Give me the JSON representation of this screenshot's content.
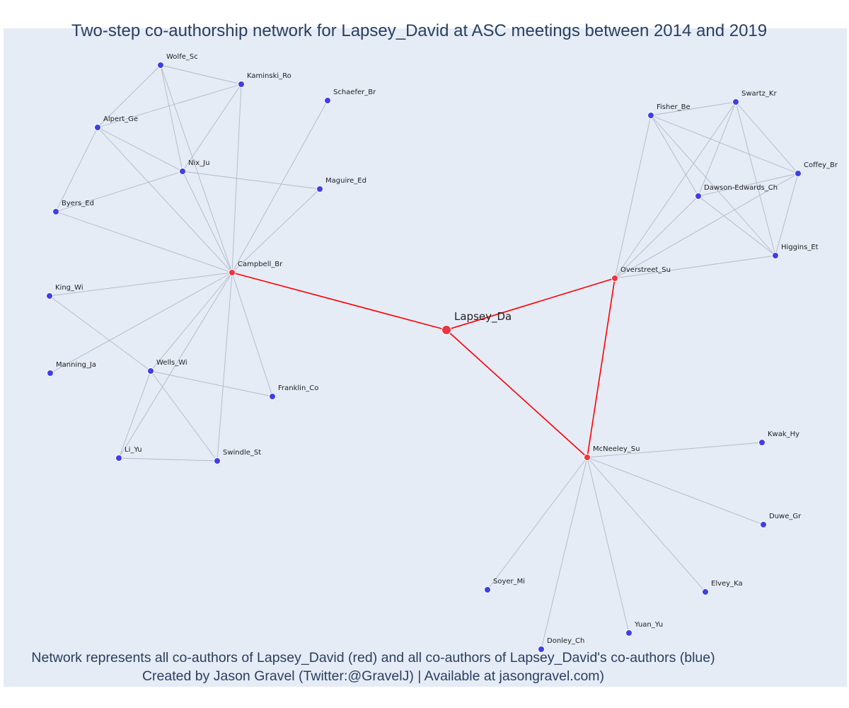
{
  "title": "Two-step co-authorship network for Lapsey_David at ASC meetings between 2014 and 2019",
  "footer": {
    "line1": "Network represents all co-authors of Lapsey_David (red) and all co-authors of Lapsey_David's co-authors (blue)",
    "line2": "Created by Jason Gravel (Twitter:@GravelJ) | Available at jasongravel.com)"
  },
  "colors": {
    "background": "#e5ecf6",
    "red_node": "#ef3340",
    "blue_node": "#3f3fe8",
    "red_edge": "#ff0000",
    "gray_edge": "#b3b7c6"
  },
  "nodes": [
    {
      "id": "Lapsey_Da",
      "label": "Lapsey_Da",
      "group": "center"
    },
    {
      "id": "Campbell_Br",
      "label": "Campbell_Br",
      "group": "red"
    },
    {
      "id": "Overstreet_Su",
      "label": "Overstreet_Su",
      "group": "red"
    },
    {
      "id": "McNeeley_Su",
      "label": "McNeeley_Su",
      "group": "red"
    },
    {
      "id": "Wolfe_Sc",
      "label": "Wolfe_Sc",
      "group": "blue"
    },
    {
      "id": "Kaminski_Ro",
      "label": "Kaminski_Ro",
      "group": "blue"
    },
    {
      "id": "Schaefer_Br",
      "label": "Schaefer_Br",
      "group": "blue"
    },
    {
      "id": "Alpert_Ge",
      "label": "Alpert_Ge",
      "group": "blue"
    },
    {
      "id": "Nix_Ju",
      "label": "Nix_Ju",
      "group": "blue"
    },
    {
      "id": "Maguire_Ed",
      "label": "Maguire_Ed",
      "group": "blue"
    },
    {
      "id": "Byers_Ed",
      "label": "Byers_Ed",
      "group": "blue"
    },
    {
      "id": "King_Wi",
      "label": "King_Wi",
      "group": "blue"
    },
    {
      "id": "Manning_Ja",
      "label": "Manning_Ja",
      "group": "blue"
    },
    {
      "id": "Wells_Wi",
      "label": "Wells_Wi",
      "group": "blue"
    },
    {
      "id": "Franklin_Co",
      "label": "Franklin_Co",
      "group": "blue"
    },
    {
      "id": "Li_Yu",
      "label": "Li_Yu",
      "group": "blue"
    },
    {
      "id": "Swindle_St",
      "label": "Swindle_St",
      "group": "blue"
    },
    {
      "id": "Fisher_Be",
      "label": "Fisher_Be",
      "group": "blue"
    },
    {
      "id": "Swartz_Kr",
      "label": "Swartz_Kr",
      "group": "blue"
    },
    {
      "id": "Coffey_Br",
      "label": "Coffey_Br",
      "group": "blue"
    },
    {
      "id": "Dawson-Edwards_Ch",
      "label": "Dawson-Edwards_Ch",
      "group": "blue"
    },
    {
      "id": "Higgins_Et",
      "label": "Higgins_Et",
      "group": "blue"
    },
    {
      "id": "Kwak_Hy",
      "label": "Kwak_Hy",
      "group": "blue"
    },
    {
      "id": "Duwe_Gr",
      "label": "Duwe_Gr",
      "group": "blue"
    },
    {
      "id": "Soyer_Mi",
      "label": "Soyer_Mi",
      "group": "blue"
    },
    {
      "id": "Elvey_Ka",
      "label": "Elvey_Ka",
      "group": "blue"
    },
    {
      "id": "Yuan_Yu",
      "label": "Yuan_Yu",
      "group": "blue"
    },
    {
      "id": "Donley_Ch",
      "label": "Donley_Ch",
      "group": "blue"
    }
  ],
  "edges": [
    [
      "Lapsey_Da",
      "Campbell_Br"
    ],
    [
      "Lapsey_Da",
      "Overstreet_Su"
    ],
    [
      "Lapsey_Da",
      "McNeeley_Su"
    ],
    [
      "Overstreet_Su",
      "McNeeley_Su"
    ],
    [
      "Wolfe_Sc",
      "Kaminski_Ro"
    ],
    [
      "Wolfe_Sc",
      "Alpert_Ge"
    ],
    [
      "Wolfe_Sc",
      "Nix_Ju"
    ],
    [
      "Wolfe_Sc",
      "Campbell_Br"
    ],
    [
      "Kaminski_Ro",
      "Alpert_Ge"
    ],
    [
      "Kaminski_Ro",
      "Nix_Ju"
    ],
    [
      "Kaminski_Ro",
      "Campbell_Br"
    ],
    [
      "Alpert_Ge",
      "Nix_Ju"
    ],
    [
      "Alpert_Ge",
      "Byers_Ed"
    ],
    [
      "Alpert_Ge",
      "Campbell_Br"
    ],
    [
      "Nix_Ju",
      "Byers_Ed"
    ],
    [
      "Nix_Ju",
      "Maguire_Ed"
    ],
    [
      "Nix_Ju",
      "Campbell_Br"
    ],
    [
      "Schaefer_Br",
      "Campbell_Br"
    ],
    [
      "Maguire_Ed",
      "Campbell_Br"
    ],
    [
      "Byers_Ed",
      "Campbell_Br"
    ],
    [
      "King_Wi",
      "Campbell_Br"
    ],
    [
      "King_Wi",
      "Wells_Wi"
    ],
    [
      "Manning_Ja",
      "Campbell_Br"
    ],
    [
      "Wells_Wi",
      "Campbell_Br"
    ],
    [
      "Wells_Wi",
      "Franklin_Co"
    ],
    [
      "Wells_Wi",
      "Li_Yu"
    ],
    [
      "Wells_Wi",
      "Swindle_St"
    ],
    [
      "Franklin_Co",
      "Campbell_Br"
    ],
    [
      "Li_Yu",
      "Campbell_Br"
    ],
    [
      "Li_Yu",
      "Swindle_St"
    ],
    [
      "Swindle_St",
      "Campbell_Br"
    ],
    [
      "Fisher_Be",
      "Swartz_Kr"
    ],
    [
      "Fisher_Be",
      "Coffey_Br"
    ],
    [
      "Fisher_Be",
      "Dawson-Edwards_Ch"
    ],
    [
      "Fisher_Be",
      "Higgins_Et"
    ],
    [
      "Fisher_Be",
      "Overstreet_Su"
    ],
    [
      "Swartz_Kr",
      "Coffey_Br"
    ],
    [
      "Swartz_Kr",
      "Dawson-Edwards_Ch"
    ],
    [
      "Swartz_Kr",
      "Higgins_Et"
    ],
    [
      "Swartz_Kr",
      "Overstreet_Su"
    ],
    [
      "Coffey_Br",
      "Dawson-Edwards_Ch"
    ],
    [
      "Coffey_Br",
      "Higgins_Et"
    ],
    [
      "Coffey_Br",
      "Overstreet_Su"
    ],
    [
      "Dawson-Edwards_Ch",
      "Higgins_Et"
    ],
    [
      "Dawson-Edwards_Ch",
      "Overstreet_Su"
    ],
    [
      "Higgins_Et",
      "Overstreet_Su"
    ],
    [
      "McNeeley_Su",
      "Kwak_Hy"
    ],
    [
      "McNeeley_Su",
      "Duwe_Gr"
    ],
    [
      "McNeeley_Su",
      "Soyer_Mi"
    ],
    [
      "McNeeley_Su",
      "Elvey_Ka"
    ],
    [
      "McNeeley_Su",
      "Yuan_Yu"
    ],
    [
      "McNeeley_Su",
      "Donley_Ch"
    ]
  ]
}
